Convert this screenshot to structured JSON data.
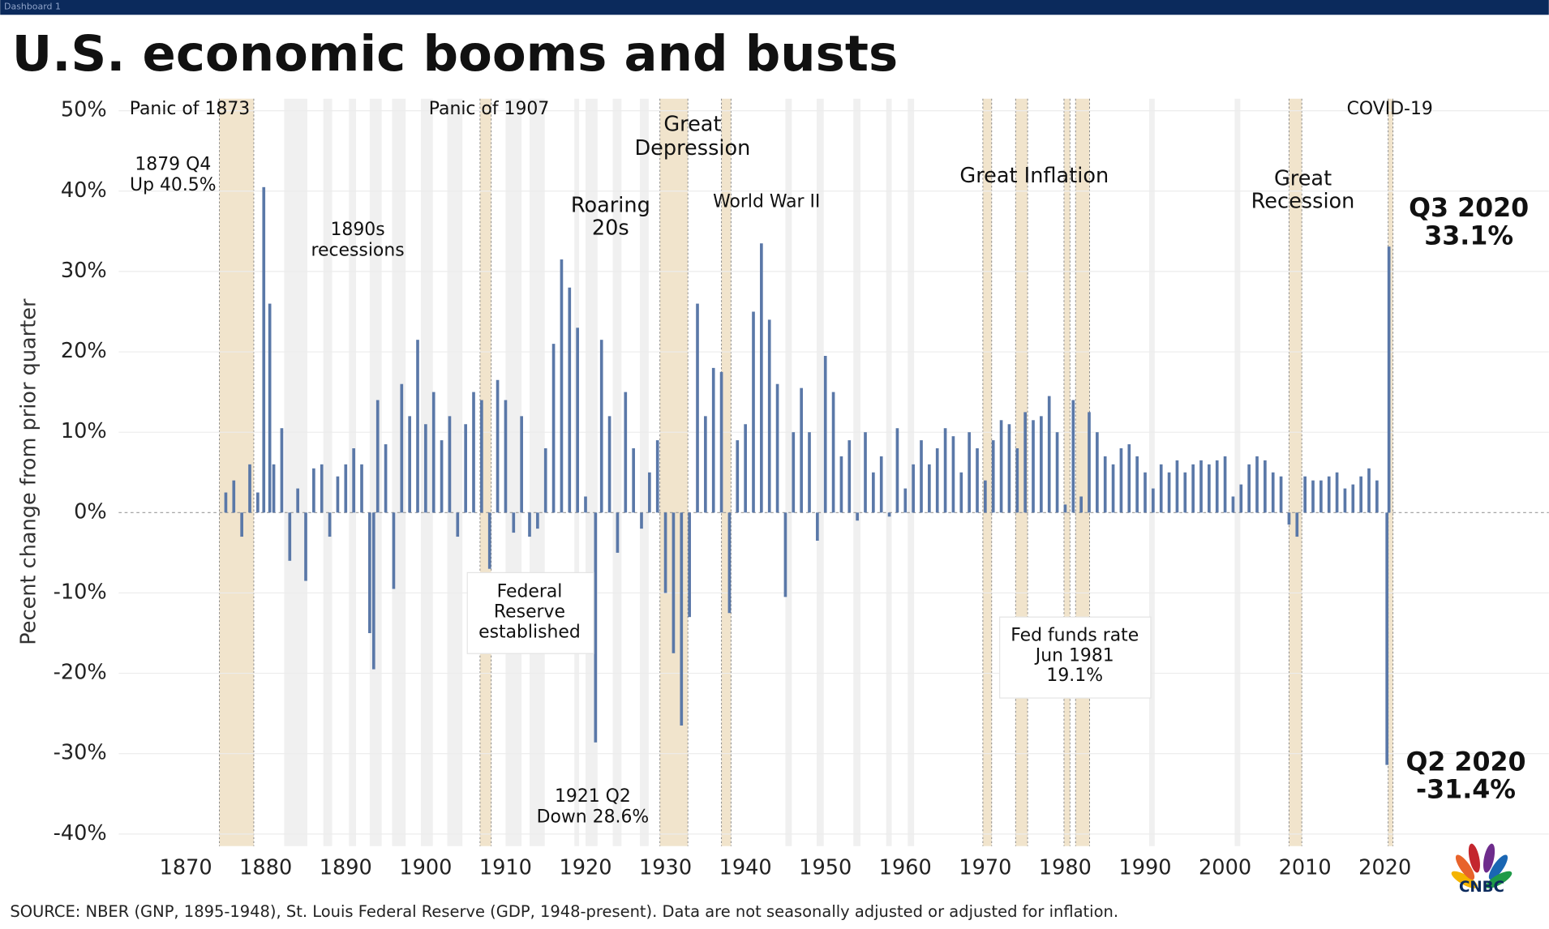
{
  "tab": "Dashboard 1",
  "chart_data": {
    "type": "bar",
    "title": "U.S. economic booms and busts",
    "y_label": "Pecent change from prior quarter",
    "source": "SOURCE: NBER (GNP, 1895-1948), St. Louis Federal Reserve (GDP, 1948-present). Data are not seasonally adjusted or adjusted for inflation.",
    "color": "#5a78a8",
    "grid": true,
    "xlim": [
      1861.6,
      2040.5
    ],
    "ylim": [
      -41.5,
      51.5
    ],
    "xticks": [
      1870,
      1880,
      1890,
      1900,
      1910,
      1920,
      1930,
      1940,
      1950,
      1960,
      1970,
      1980,
      1990,
      2000,
      2010,
      2020
    ],
    "yticks": [
      {
        "value": 50,
        "label": "50%"
      },
      {
        "value": 40,
        "label": "40%"
      },
      {
        "value": 30,
        "label": "30%"
      },
      {
        "value": 20,
        "label": "20%"
      },
      {
        "value": 10,
        "label": "10%"
      },
      {
        "value": 0,
        "label": "0%"
      },
      {
        "value": -10,
        "label": "-10%"
      },
      {
        "value": -20,
        "label": "-20%"
      },
      {
        "value": -30,
        "label": "-30%"
      },
      {
        "value": -40,
        "label": "-40%"
      }
    ],
    "highlight_color": "#f1e4cc",
    "highlighted_recessions": [
      [
        1874.2,
        1878.5
      ],
      [
        1906.8,
        1908.2
      ],
      [
        1929.3,
        1932.8
      ],
      [
        1937.0,
        1938.2
      ],
      [
        1969.7,
        1970.8
      ],
      [
        1973.8,
        1975.3
      ],
      [
        1979.85,
        1980.6
      ],
      [
        1981.3,
        1983.05
      ],
      [
        2008.0,
        2009.6
      ],
      [
        2020.4,
        2021.0
      ]
    ],
    "other_color": "#f0f0f0",
    "other_recessions": [
      [
        1882.3,
        1885.2
      ],
      [
        1887.2,
        1888.3
      ],
      [
        1890.4,
        1891.3
      ],
      [
        1893.0,
        1894.5
      ],
      [
        1895.8,
        1897.5
      ],
      [
        1899.4,
        1900.9
      ],
      [
        1902.7,
        1904.6
      ],
      [
        1910.0,
        1912.0
      ],
      [
        1913.0,
        1914.9
      ],
      [
        1918.6,
        1919.2
      ],
      [
        1920.0,
        1921.5
      ],
      [
        1923.4,
        1924.5
      ],
      [
        1926.8,
        1927.9
      ],
      [
        1945.0,
        1945.8
      ],
      [
        1948.9,
        1949.8
      ],
      [
        1953.5,
        1954.4
      ],
      [
        1957.6,
        1958.3
      ],
      [
        1960.3,
        1961.1
      ],
      [
        1990.5,
        1991.2
      ],
      [
        2001.2,
        2001.9
      ]
    ],
    "x": [
      1875,
      1876,
      1877,
      1878,
      1879,
      1879.75,
      1880.5,
      1881,
      1882,
      1883,
      1884,
      1885,
      1886,
      1887,
      1888,
      1889,
      1890,
      1891,
      1892,
      1893,
      1893.5,
      1894,
      1895,
      1896,
      1897,
      1898,
      1899,
      1900,
      1901,
      1902,
      1903,
      1904,
      1905,
      1906,
      1907,
      1908,
      1909,
      1910,
      1911,
      1912,
      1913,
      1914,
      1915,
      1916,
      1917,
      1918,
      1919,
      1920,
      1921.25,
      1922,
      1923,
      1924,
      1925,
      1926,
      1927,
      1928,
      1929,
      1930,
      1931,
      1932,
      1933,
      1934,
      1935,
      1936,
      1937,
      1938,
      1939,
      1940,
      1941,
      1942,
      1943,
      1944,
      1945,
      1946,
      1947,
      1948,
      1949,
      1950,
      1951,
      1952,
      1953,
      1954,
      1955,
      1956,
      1957,
      1958,
      1959,
      1960,
      1961,
      1962,
      1963,
      1964,
      1965,
      1966,
      1967,
      1968,
      1969,
      1970,
      1971,
      1972,
      1973,
      1974,
      1975,
      1976,
      1977,
      1978,
      1979,
      1980,
      1981,
      1982,
      1983,
      1984,
      1985,
      1986,
      1987,
      1988,
      1989,
      1990,
      1991,
      1992,
      1993,
      1994,
      1995,
      1996,
      1997,
      1998,
      1999,
      2000,
      2001,
      2002,
      2003,
      2004,
      2005,
      2006,
      2007,
      2008,
      2009,
      2010,
      2011,
      2012,
      2013,
      2014,
      2015,
      2016,
      2017,
      2018,
      2019,
      2020.25,
      2020.5
    ],
    "values": [
      2.5,
      4,
      -3,
      6,
      2.5,
      40.5,
      26,
      6,
      10.5,
      -6,
      3,
      -8.5,
      5.5,
      6,
      -3,
      4.5,
      6,
      8,
      6,
      -15,
      -19.5,
      14,
      8.5,
      -9.5,
      16,
      12,
      21.5,
      11,
      15,
      9,
      12,
      -3,
      11,
      15,
      14,
      -7,
      16.5,
      14,
      -2.5,
      12,
      -3,
      -2,
      8,
      21,
      31.5,
      28,
      23,
      2,
      -28.6,
      21.5,
      12,
      -5,
      15,
      8,
      -2,
      5,
      9,
      -10,
      -17.5,
      -26.5,
      -13,
      26,
      12,
      18,
      17.5,
      -12.5,
      9,
      11,
      25,
      33.5,
      24,
      16,
      -10.5,
      10,
      15.5,
      10,
      -3.5,
      19.5,
      15,
      7,
      9,
      -1,
      10,
      5,
      7,
      -0.5,
      10.5,
      3,
      6,
      9,
      6,
      8,
      10.5,
      9.5,
      5,
      10,
      8,
      4,
      9,
      11.5,
      11,
      8,
      12.5,
      11.5,
      12,
      14.5,
      10,
      1,
      14,
      2,
      12.5,
      10,
      7,
      6,
      8,
      8.5,
      7,
      5,
      3,
      6,
      5,
      6.5,
      5,
      6,
      6.5,
      6,
      6.5,
      7,
      2,
      3.5,
      6,
      7,
      6.5,
      5,
      4.5,
      -1.5,
      -3,
      4.5,
      4,
      4,
      4.5,
      5,
      3,
      3.5,
      4.5,
      5.5,
      4,
      -31.4,
      33.1
    ],
    "annotations": [
      [
        "Panic of 1873"
      ],
      [
        "1879 Q4",
        "Up 40.5%"
      ],
      [
        "1890s",
        "recessions"
      ],
      [
        "Panic of 1907"
      ],
      [
        "Roaring",
        "20s"
      ],
      [
        "Great",
        "Depression"
      ],
      [
        "World War II"
      ],
      [
        "Great Inflation"
      ],
      [
        "Great",
        "Recession"
      ],
      [
        "COVID-19"
      ],
      [
        "Federal",
        "Reserve",
        "established"
      ],
      [
        "1921 Q2",
        "Down 28.6%"
      ],
      [
        "Fed funds rate",
        "Jun 1981",
        "19.1%"
      ],
      [
        "Q3 2020",
        "33.1%"
      ],
      [
        "Q2 2020",
        "-31.4%"
      ]
    ]
  },
  "logo": "CNBC"
}
